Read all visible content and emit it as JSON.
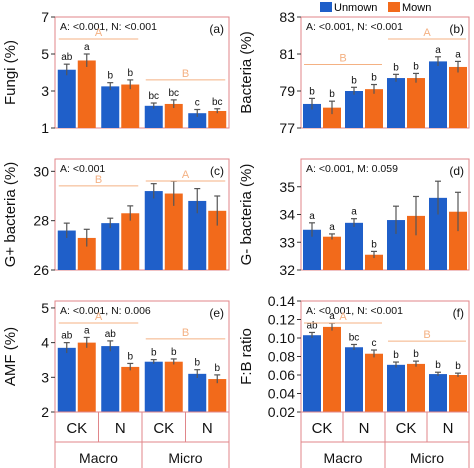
{
  "legend": {
    "entries": [
      {
        "label": "Unmown",
        "color": "#1f5fc9"
      },
      {
        "label": "Mown",
        "color": "#f26a1b"
      }
    ],
    "placement": "top-center"
  },
  "colors": {
    "frame": "#e0868a",
    "annotation": "#f4b183",
    "error_bar": "#555555"
  },
  "groups": {
    "treatments": [
      "CK",
      "N",
      "CK",
      "N"
    ],
    "sizes": [
      "Macro",
      "Micro"
    ]
  },
  "chart_data": [
    {
      "type": "bar",
      "panel": "(a)",
      "ylabel": "Fungi (%)",
      "ylim": [
        1,
        7
      ],
      "yticks": [
        1,
        3,
        5,
        7
      ],
      "yticklabels": [
        "1",
        "3",
        "5",
        "7"
      ],
      "stats": "A: <0.001, N: <0.001",
      "categories": [
        "Macro CK",
        "Macro N",
        "Micro CK",
        "Micro N"
      ],
      "series": [
        {
          "name": "Unmown",
          "values": [
            4.15,
            3.25,
            2.2,
            1.8
          ],
          "errors": [
            0.3,
            0.2,
            0.15,
            0.2
          ],
          "letters": [
            "ab",
            "b",
            "bc",
            "c"
          ]
        },
        {
          "name": "Mown",
          "values": [
            4.65,
            3.35,
            2.3,
            1.92
          ],
          "errors": [
            0.35,
            0.25,
            0.22,
            0.12
          ],
          "letters": [
            "a",
            "b",
            "bc",
            "bc"
          ]
        }
      ],
      "group_labels": [
        {
          "text": "A",
          "over": "Macro"
        },
        {
          "text": "B",
          "over": "Micro"
        }
      ]
    },
    {
      "type": "bar",
      "panel": "(b)",
      "ylabel": "Bacteria (%)",
      "ylim": [
        77,
        83
      ],
      "yticks": [
        77,
        79,
        81,
        83
      ],
      "yticklabels": [
        "77",
        "79",
        "81",
        "83"
      ],
      "stats": "A: <0.001, N: <0.001",
      "categories": [
        "Macro CK",
        "Macro N",
        "Micro CK",
        "Micro N"
      ],
      "series": [
        {
          "name": "Unmown",
          "values": [
            78.3,
            79.0,
            79.7,
            80.6
          ],
          "errors": [
            0.3,
            0.2,
            0.2,
            0.25
          ],
          "letters": [
            "b",
            "b",
            "b",
            "a"
          ]
        },
        {
          "name": "Mown",
          "values": [
            78.1,
            79.1,
            79.7,
            80.3
          ],
          "errors": [
            0.35,
            0.25,
            0.25,
            0.3
          ],
          "letters": [
            "b",
            "b",
            "b",
            "a"
          ]
        }
      ],
      "group_labels": [
        {
          "text": "B",
          "over": "Macro"
        },
        {
          "text": "A",
          "over": "Micro"
        }
      ]
    },
    {
      "type": "bar",
      "panel": "(c)",
      "ylabel": "G+ bacteria (%)",
      "ylim": [
        26,
        30.5
      ],
      "yticks": [
        26,
        28,
        30
      ],
      "yticklabels": [
        "26",
        "28",
        "30"
      ],
      "stats": "A: <0.001",
      "categories": [
        "Macro CK",
        "Macro N",
        "Micro CK",
        "Micro N"
      ],
      "series": [
        {
          "name": "Unmown",
          "values": [
            27.6,
            27.9,
            29.2,
            28.8
          ],
          "errors": [
            0.3,
            0.2,
            0.3,
            0.5
          ],
          "letters": [
            "",
            "",
            "",
            ""
          ]
        },
        {
          "name": "Mown",
          "values": [
            27.3,
            28.3,
            29.1,
            28.4
          ],
          "errors": [
            0.35,
            0.3,
            0.5,
            0.6
          ],
          "letters": [
            "",
            "",
            "",
            ""
          ]
        }
      ],
      "group_labels": [
        {
          "text": "B",
          "over": "Macro"
        },
        {
          "text": "A",
          "over": "Micro"
        }
      ]
    },
    {
      "type": "bar",
      "panel": "(d)",
      "ylabel": "G- bacteria (%)",
      "ylim": [
        32,
        36
      ],
      "yticks": [
        32,
        33,
        34,
        35
      ],
      "yticklabels": [
        "32",
        "33",
        "34",
        "35"
      ],
      "stats": "A: <0.001, M: 0.059",
      "categories": [
        "Macro CK",
        "Macro N",
        "Micro CK",
        "Micro N"
      ],
      "series": [
        {
          "name": "Unmown",
          "values": [
            33.45,
            33.7,
            33.8,
            34.6
          ],
          "errors": [
            0.25,
            0.15,
            0.5,
            0.6
          ],
          "letters": [
            "a",
            "a",
            "",
            ""
          ]
        },
        {
          "name": "Mown",
          "values": [
            33.2,
            32.55,
            33.95,
            34.1
          ],
          "errors": [
            0.1,
            0.12,
            0.7,
            0.7
          ],
          "letters": [
            "a",
            "b",
            "",
            ""
          ]
        }
      ],
      "group_labels": []
    },
    {
      "type": "bar",
      "panel": "(e)",
      "ylabel": "AMF (%)",
      "ylim": [
        2,
        5.2
      ],
      "yticks": [
        2,
        3,
        4,
        5
      ],
      "yticklabels": [
        "2",
        "3",
        "4",
        "5"
      ],
      "stats": "A: <0.001, N: 0.006",
      "categories": [
        "Macro CK",
        "Macro N",
        "Micro CK",
        "Micro N"
      ],
      "series": [
        {
          "name": "Unmown",
          "values": [
            3.85,
            3.9,
            3.45,
            3.1
          ],
          "errors": [
            0.15,
            0.15,
            0.06,
            0.12
          ],
          "letters": [
            "ab",
            "ab",
            "b",
            "b"
          ]
        },
        {
          "name": "Mown",
          "values": [
            4.0,
            3.3,
            3.45,
            2.95
          ],
          "errors": [
            0.15,
            0.1,
            0.08,
            0.12
          ],
          "letters": [
            "a",
            "b",
            "b",
            "b"
          ]
        }
      ],
      "group_labels": [
        {
          "text": "A",
          "over": "Macro"
        },
        {
          "text": "B",
          "over": "Micro"
        }
      ]
    },
    {
      "type": "bar",
      "panel": "(f)",
      "ylabel": "F:B ratio",
      "ylim": [
        0.02,
        0.14
      ],
      "yticks": [
        0.02,
        0.04,
        0.06,
        0.08,
        0.1,
        0.12,
        0.14
      ],
      "yticklabels": [
        "0.02",
        "0.04",
        "0.06",
        "0.08",
        "0.10",
        "0.12",
        "0.14"
      ],
      "stats": "A: <0.001, N: <0.001",
      "categories": [
        "Macro CK",
        "Macro N",
        "Micro CK",
        "Micro N"
      ],
      "series": [
        {
          "name": "Unmown",
          "values": [
            0.103,
            0.09,
            0.071,
            0.061
          ],
          "errors": [
            0.003,
            0.003,
            0.003,
            0.002
          ],
          "letters": [
            "ab",
            "bc",
            "b",
            "b"
          ]
        },
        {
          "name": "Mown",
          "values": [
            0.112,
            0.083,
            0.072,
            0.06
          ],
          "errors": [
            0.004,
            0.004,
            0.003,
            0.002
          ],
          "letters": [
            "a",
            "c",
            "b",
            "b"
          ]
        }
      ],
      "group_labels": [
        {
          "text": "A",
          "over": "Macro"
        },
        {
          "text": "B",
          "over": "Micro"
        }
      ]
    }
  ]
}
